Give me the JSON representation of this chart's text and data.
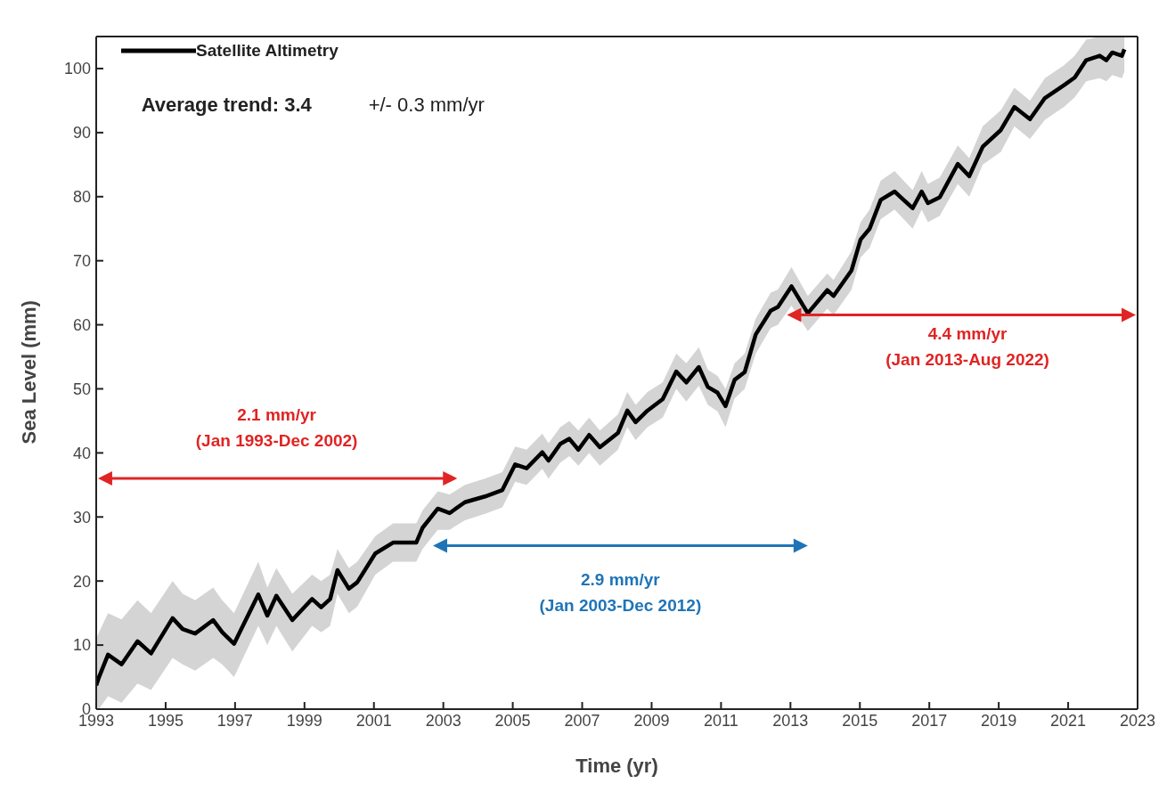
{
  "chart_data": {
    "type": "line",
    "xlabel": "Time (yr)",
    "ylabel": "Sea Level (mm)",
    "xlim": [
      1993,
      2023
    ],
    "xticks": [
      1993,
      1995,
      1997,
      1999,
      2001,
      2003,
      2005,
      2007,
      2009,
      2011,
      2013,
      2015,
      2017,
      2019,
      2021,
      2023
    ],
    "ylim": [
      0,
      105
    ],
    "yticks": [
      0,
      10,
      20,
      30,
      40,
      50,
      60,
      70,
      80,
      90,
      100
    ],
    "legend": "top left",
    "marker": "none",
    "line_style": "solid",
    "annotations": [
      "Average trend: 3.4",
      "+/- 0.3 mm/yr",
      "2.1 mm/yr",
      "(Jan 1993-Dec 2002)",
      "2.9 mm/yr",
      "(Jan 2003-Dec 2012)",
      "4.4 mm/yr",
      "(Jan 2013-Aug 2022)"
    ],
    "series": [
      {
        "name": "Satellite Altimetry",
        "color": "#000000",
        "x": [
          1993.0,
          1993.08,
          1993.34,
          1993.73,
          1994.19,
          1994.58,
          1995.2,
          1995.49,
          1995.85,
          1996.37,
          1996.63,
          1996.97,
          1997.67,
          1997.93,
          1998.19,
          1998.65,
          1999.22,
          1999.48,
          1999.74,
          1999.95,
          2000.28,
          2000.52,
          2001.04,
          2001.55,
          2002.22,
          2002.4,
          2002.84,
          2003.18,
          2003.62,
          2004.2,
          2004.7,
          2005.07,
          2005.4,
          2005.85,
          2006.03,
          2006.37,
          2006.63,
          2006.89,
          2007.2,
          2007.51,
          2008.03,
          2008.3,
          2008.54,
          2008.88,
          2009.32,
          2009.71,
          2010.0,
          2010.36,
          2010.62,
          2010.9,
          2011.13,
          2011.39,
          2011.68,
          2012.0,
          2012.43,
          2012.64,
          2013.03,
          2013.5,
          2014.06,
          2014.24,
          2014.76,
          2015.02,
          2015.28,
          2015.6,
          2016.0,
          2016.52,
          2016.78,
          2016.96,
          2017.3,
          2017.82,
          2018.15,
          2018.54,
          2019.06,
          2019.45,
          2019.9,
          2020.33,
          2020.88,
          2021.19,
          2021.52,
          2021.91,
          2022.1,
          2022.27,
          2022.55,
          2022.62
        ],
        "values": [
          3.7,
          5,
          8.5,
          7,
          10.6,
          8.7,
          14.2,
          12.5,
          11.8,
          13.9,
          12,
          10.2,
          17.9,
          14.6,
          17.7,
          13.9,
          17.2,
          15.9,
          17.2,
          21.7,
          18.8,
          19.8,
          24.3,
          26,
          26,
          28.3,
          31.3,
          30.6,
          32.3,
          33.2,
          34.2,
          38.2,
          37.6,
          40.1,
          38.8,
          41.4,
          42.2,
          40.5,
          42.8,
          40.9,
          43.1,
          46.6,
          44.8,
          46.6,
          48.4,
          52.7,
          51,
          53.4,
          50.3,
          49.4,
          47.3,
          51.4,
          52.6,
          58.5,
          62.2,
          62.8,
          66,
          61.8,
          65.4,
          64.5,
          68.5,
          73.3,
          75,
          79.5,
          80.8,
          78.2,
          80.8,
          79,
          79.9,
          85.1,
          83.2,
          87.8,
          90.4,
          94,
          92.1,
          95.4,
          97.4,
          98.6,
          101.3,
          102,
          101.3,
          102.5,
          102,
          103
        ],
        "lower": [
          0,
          0,
          2,
          1,
          4,
          3,
          8,
          7,
          6,
          8,
          7,
          5,
          13,
          10,
          13,
          9,
          13,
          12,
          13,
          18,
          15,
          16,
          21,
          23,
          23,
          25,
          28,
          28,
          29.5,
          30.5,
          31.5,
          35.5,
          35,
          37.5,
          36,
          38.5,
          39.5,
          38,
          40,
          38,
          40.5,
          44,
          42,
          44,
          45.5,
          50,
          48,
          50.5,
          47.5,
          46.5,
          44,
          48.5,
          50,
          55.5,
          59.5,
          60,
          63,
          59,
          62.5,
          61.5,
          65.5,
          70.5,
          72,
          76.5,
          78,
          75,
          78,
          76,
          77,
          82,
          80,
          85,
          87,
          91,
          89,
          92,
          94,
          95.5,
          98,
          98.5,
          98,
          99,
          98.5,
          99.5
        ],
        "upper": [
          11,
          12,
          15,
          14,
          17,
          15,
          20,
          18,
          17,
          19,
          17,
          15,
          23,
          19,
          22,
          18,
          21,
          20,
          21,
          25,
          22,
          23,
          27,
          29,
          29,
          31,
          34,
          33.5,
          35,
          36,
          37,
          41,
          40.5,
          43,
          41.5,
          44,
          45,
          43.5,
          45.5,
          43.5,
          46,
          49.5,
          47.5,
          49.5,
          51,
          55.5,
          54,
          56.5,
          53,
          52,
          50,
          54,
          55.5,
          61,
          65,
          65.5,
          69,
          64.5,
          68,
          67,
          71.5,
          76,
          78,
          82.5,
          84,
          81,
          84,
          82,
          83,
          88,
          86,
          91,
          93.5,
          97,
          95,
          98.5,
          100.5,
          102,
          104.5,
          105,
          105,
          105,
          105,
          105
        ]
      }
    ]
  }
}
